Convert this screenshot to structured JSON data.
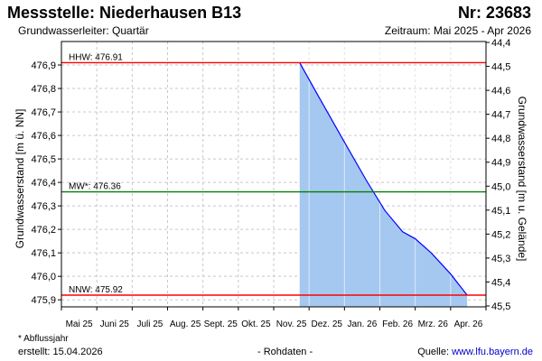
{
  "header": {
    "title": "Messstelle: Niederhausen B13",
    "number": "Nr: 23683",
    "aquifer": "Grundwasserleiter: Quartär",
    "period": "Zeitraum: Mai 2025 - Apr 2026"
  },
  "footer": {
    "footnote": "* Abflussjahr",
    "created": "erstellt:  15.04.2026",
    "raw": "- Rohdaten -",
    "source_prefix": "Quelle: ",
    "source_link": "www.lfu.bayern.de"
  },
  "colors": {
    "hhw_line": "#ff0000",
    "nnw_line": "#ff0000",
    "mw_line": "#008000",
    "series_line": "#0000ff",
    "series_fill": "#a5c8f0",
    "grid": "#c8c8c8"
  },
  "chart_data": {
    "type": "area",
    "xlabel": "",
    "ylabel": "Grundwasserstand [m ü. NN]",
    "ylabel_right": "Grundwasserstand [m u. Gelände]",
    "x_ticks": [
      "Mai 25",
      "Juni 25",
      "Juli 25",
      "Aug. 25",
      "Sept. 25",
      "Okt. 25",
      "Nov. 25",
      "Dez. 25",
      "Jan. 26",
      "Feb. 26",
      "Mrz. 26",
      "Apr. 26"
    ],
    "ylim": [
      475.87,
      477.0
    ],
    "y_ticks": [
      "476,9",
      "476,8",
      "476,7",
      "476,6",
      "476,5",
      "476,4",
      "476,3",
      "476,2",
      "476,1",
      "476,0",
      "475,9"
    ],
    "y_ticks_right": [
      "44,4",
      "44,5",
      "44,6",
      "44,7",
      "44,8",
      "44,9",
      "45,0",
      "45,1",
      "45,2",
      "45,3",
      "45,4",
      "45,5"
    ],
    "grid": true,
    "reference_lines": [
      {
        "label": "HHW: 476.91",
        "value": 476.91,
        "kind": "hhw"
      },
      {
        "label": "MW*: 476.36",
        "value": 476.36,
        "kind": "mw"
      },
      {
        "label": "NNW: 475.92",
        "value": 475.92,
        "kind": "nnw"
      }
    ],
    "series": [
      {
        "points": [
          {
            "x": "2025-11-23",
            "y": 476.91
          },
          {
            "x": "2025-12-10",
            "y": 476.76
          },
          {
            "x": "2025-12-31",
            "y": 476.58
          },
          {
            "x": "2026-01-20",
            "y": 476.41
          },
          {
            "x": "2026-02-05",
            "y": 476.28
          },
          {
            "x": "2026-02-19",
            "y": 476.19
          },
          {
            "x": "2026-03-01",
            "y": 476.16
          },
          {
            "x": "2026-03-15",
            "y": 476.1
          },
          {
            "x": "2026-04-01",
            "y": 476.01
          },
          {
            "x": "2026-04-15",
            "y": 475.92
          }
        ]
      }
    ]
  }
}
